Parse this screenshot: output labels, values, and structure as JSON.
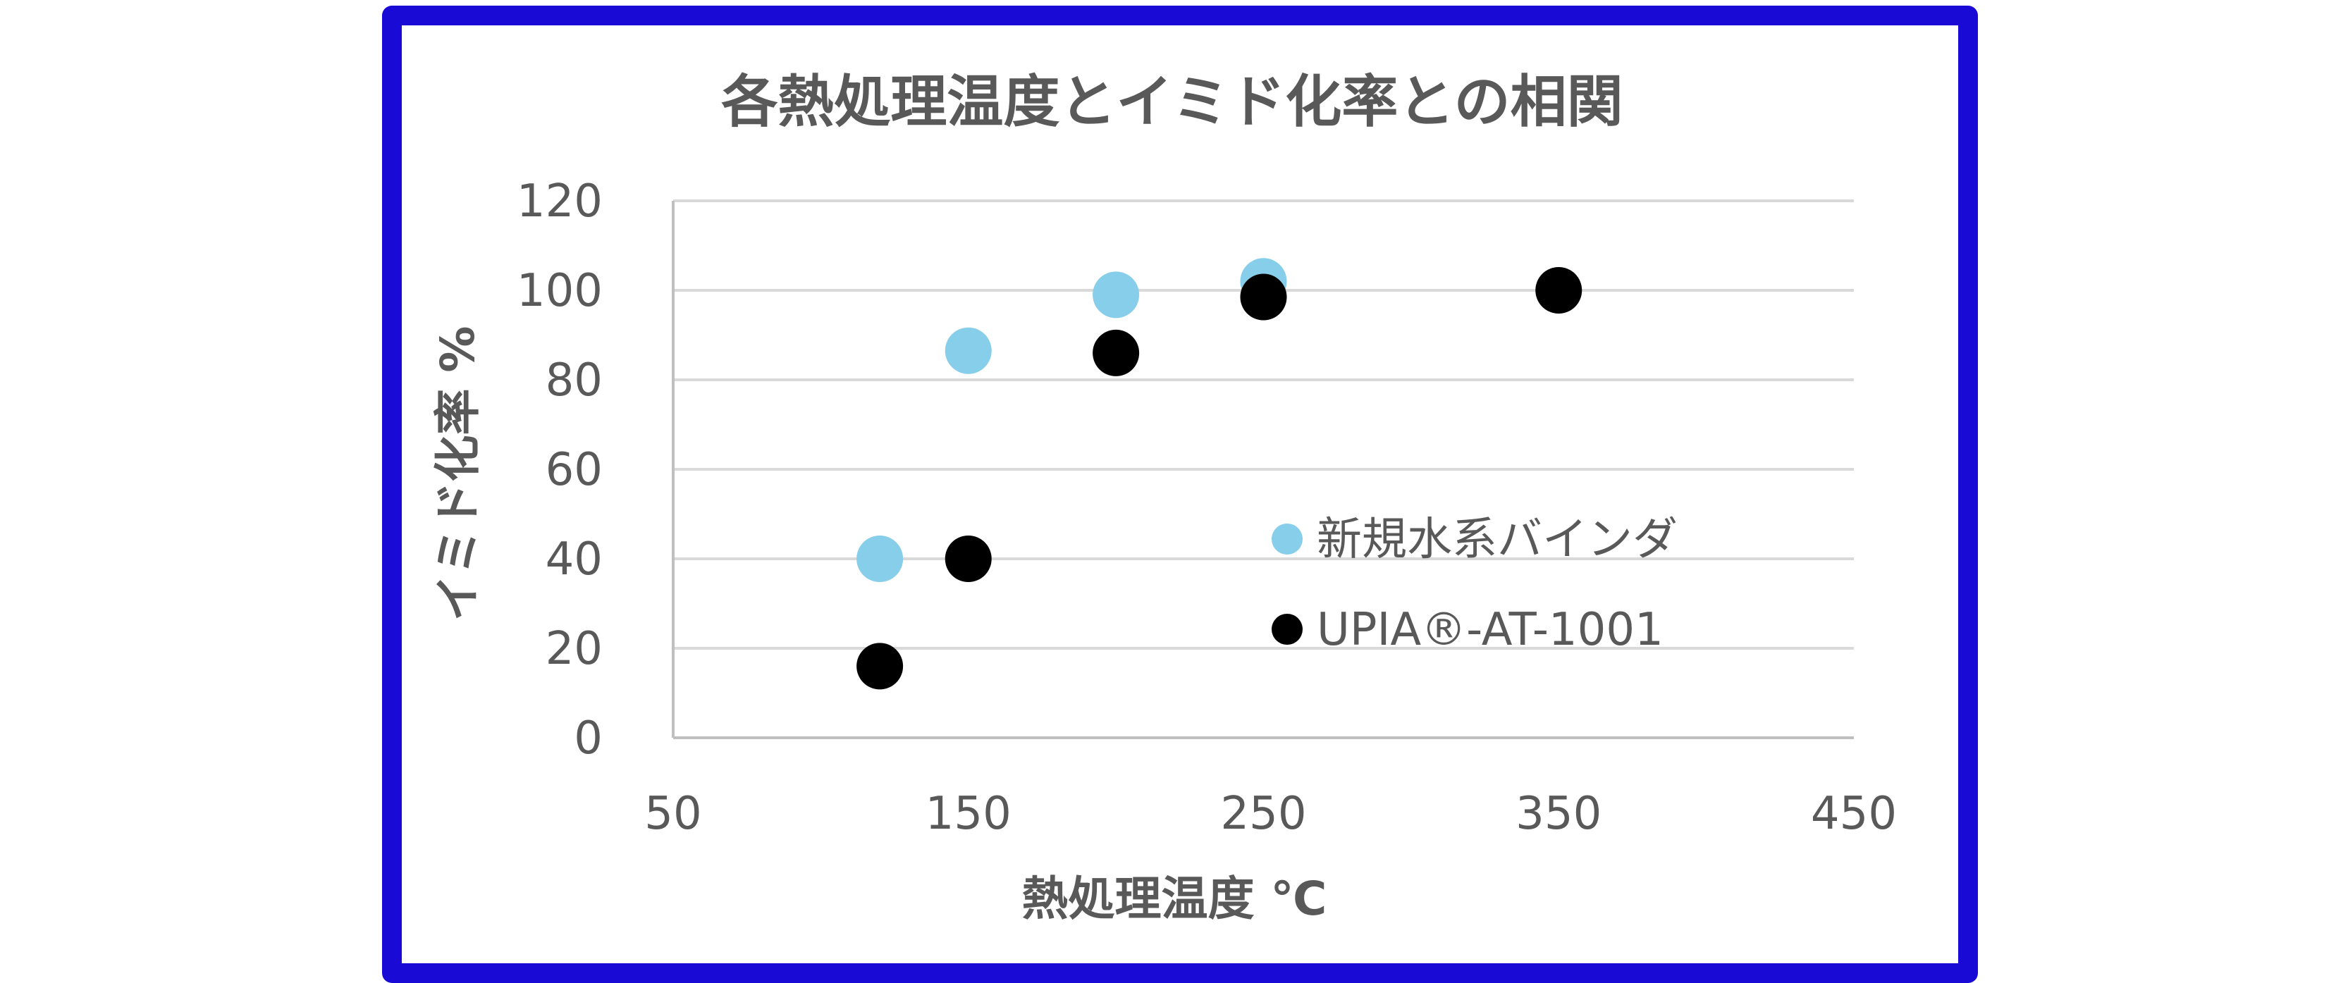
{
  "chart_data": {
    "type": "scatter",
    "title": "各熱処理温度とイミド化率との相関",
    "xlabel": "熱処理温度 ℃",
    "ylabel": "イミド化率 %",
    "xlim": [
      50,
      450
    ],
    "ylim": [
      0,
      120
    ],
    "xticks": [
      50,
      150,
      250,
      350,
      450
    ],
    "yticks": [
      0,
      20,
      40,
      60,
      80,
      100,
      120
    ],
    "grid": "horizontal",
    "legend_position": "center-right",
    "series": [
      {
        "name": "新規水系バインダ",
        "color": "#87ceeb",
        "points": [
          {
            "x": 120,
            "y": 40
          },
          {
            "x": 150,
            "y": 86.5
          },
          {
            "x": 200,
            "y": 99
          },
          {
            "x": 250,
            "y": 102
          }
        ]
      },
      {
        "name": "UPIA®-AT-1001",
        "color": "#000000",
        "points": [
          {
            "x": 120,
            "y": 16
          },
          {
            "x": 150,
            "y": 40
          },
          {
            "x": 200,
            "y": 86
          },
          {
            "x": 250,
            "y": 98.5
          },
          {
            "x": 350,
            "y": 100
          }
        ]
      }
    ]
  }
}
